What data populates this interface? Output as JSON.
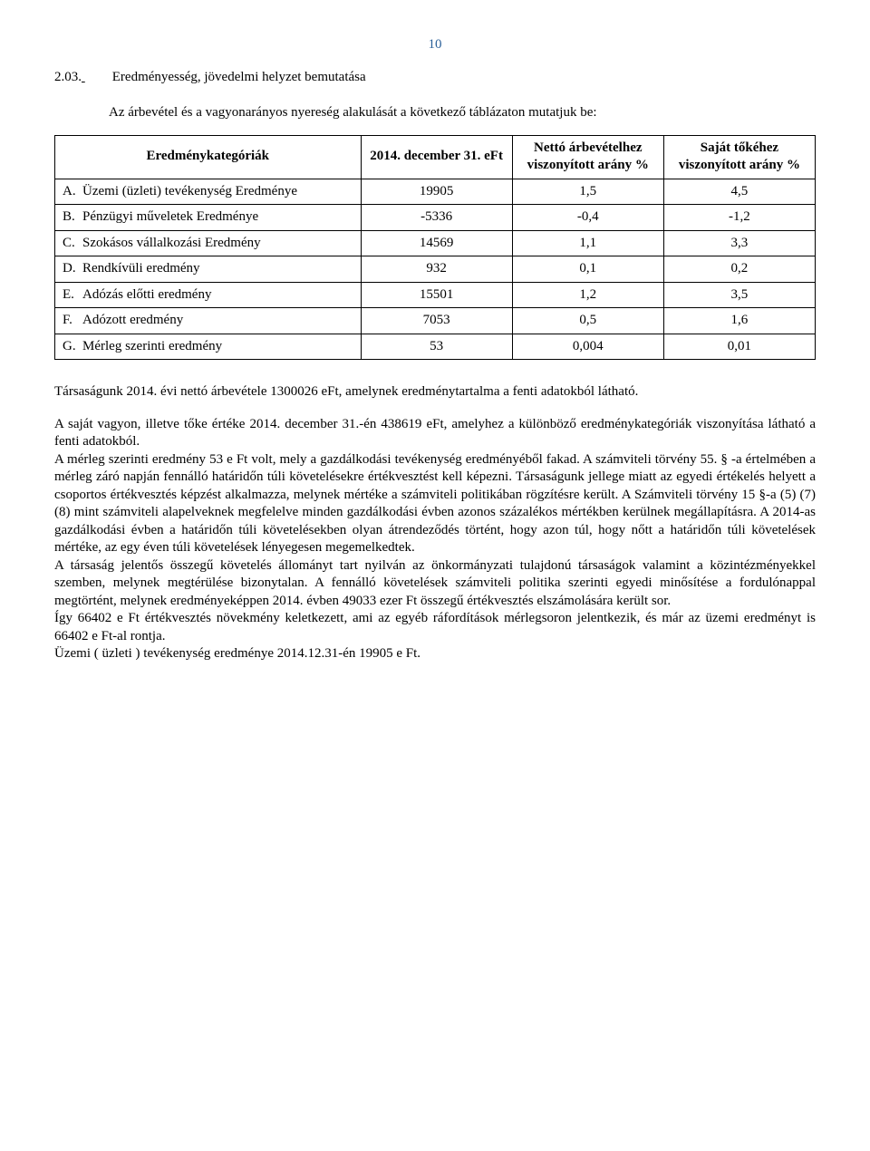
{
  "page_number": "10",
  "section": {
    "number": "2.03.",
    "title": "Eredményesség, jövedelmi helyzet bemutatása"
  },
  "intro": "Az árbevétel és a vagyonarányos nyereség alakulását a következő táblázaton mutatjuk be:",
  "table": {
    "headers": {
      "category": "Eredménykategóriák",
      "col1": "2014. december 31. eFt",
      "col2": "Nettó árbevételhez viszonyított arány %",
      "col3": "Saját tőkéhez viszonyított arány %"
    },
    "rows": [
      {
        "letter": "A.",
        "label": "Üzemi (üzleti) tevékenység Eredménye",
        "c1": "19905",
        "c2": "1,5",
        "c3": "4,5"
      },
      {
        "letter": "B.",
        "label": "Pénzügyi műveletek Eredménye",
        "c1": "-5336",
        "c2": "-0,4",
        "c3": "-1,2"
      },
      {
        "letter": "C.",
        "label": "Szokásos vállalkozási Eredmény",
        "c1": "14569",
        "c2": "1,1",
        "c3": "3,3"
      },
      {
        "letter": "D.",
        "label": "Rendkívüli eredmény",
        "c1": "932",
        "c2": "0,1",
        "c3": "0,2"
      },
      {
        "letter": "E.",
        "label": "Adózás előtti eredmény",
        "c1": "15501",
        "c2": "1,2",
        "c3": "3,5"
      },
      {
        "letter": "F.",
        "label": "Adózott eredmény",
        "c1": "7053",
        "c2": "0,5",
        "c3": "1,6"
      },
      {
        "letter": "G.",
        "label": "Mérleg szerinti eredmény",
        "c1": "53",
        "c2": "0,004",
        "c3": "0,01"
      }
    ]
  },
  "paragraphs": {
    "p1": "Társaságunk 2014. évi nettó árbevétele 1300026 eFt, amelynek eredménytartalma a fenti adatokból látható.",
    "p2": "A saját vagyon, illetve tőke értéke 2014. december 31.-én 438619 eFt, amelyhez a különböző eredménykategóriák viszonyítása látható a fenti adatokból.\nA mérleg szerinti eredmény 53 e Ft volt, mely a gazdálkodási tevékenység eredményéből fakad. A számviteli törvény 55. § -a értelmében a mérleg záró napján fennálló határidőn túli követelésekre értékvesztést kell képezni. Társaságunk jellege miatt az egyedi értékelés helyett a csoportos értékvesztés képzést alkalmazza, melynek mértéke a számviteli politikában rögzítésre került. A Számviteli törvény 15 §-a (5) (7) (8) mint számviteli alapelveknek megfelelve minden gazdálkodási évben azonos százalékos mértékben kerülnek megállapításra. A 2014-as gazdálkodási évben a határidőn túli követelésekben olyan átrendeződés történt, hogy azon túl, hogy nőtt a határidőn túli követelések mértéke, az egy éven túli követelések lényegesen megemelkedtek.\nA társaság jelentős összegű követelés állományt tart nyilván az önkormányzati tulajdonú társaságok valamint a közintézményekkel szemben, melynek megtérülése bizonytalan. A fennálló követelések számviteli politika szerinti egyedi minősítése a fordulónappal megtörtént, melynek eredményeképpen 2014. évben 49033 ezer Ft összegű értékvesztés elszámolására került sor.\n Így 66402 e Ft értékvesztés növekmény keletkezett, ami az egyéb ráfordítások mérlegsoron jelentkezik, és már az üzemi eredményt is 66402 e Ft-al rontja.\nÜzemi ( üzleti ) tevékenység eredménye 2014.12.31-én 19905 e Ft."
  }
}
